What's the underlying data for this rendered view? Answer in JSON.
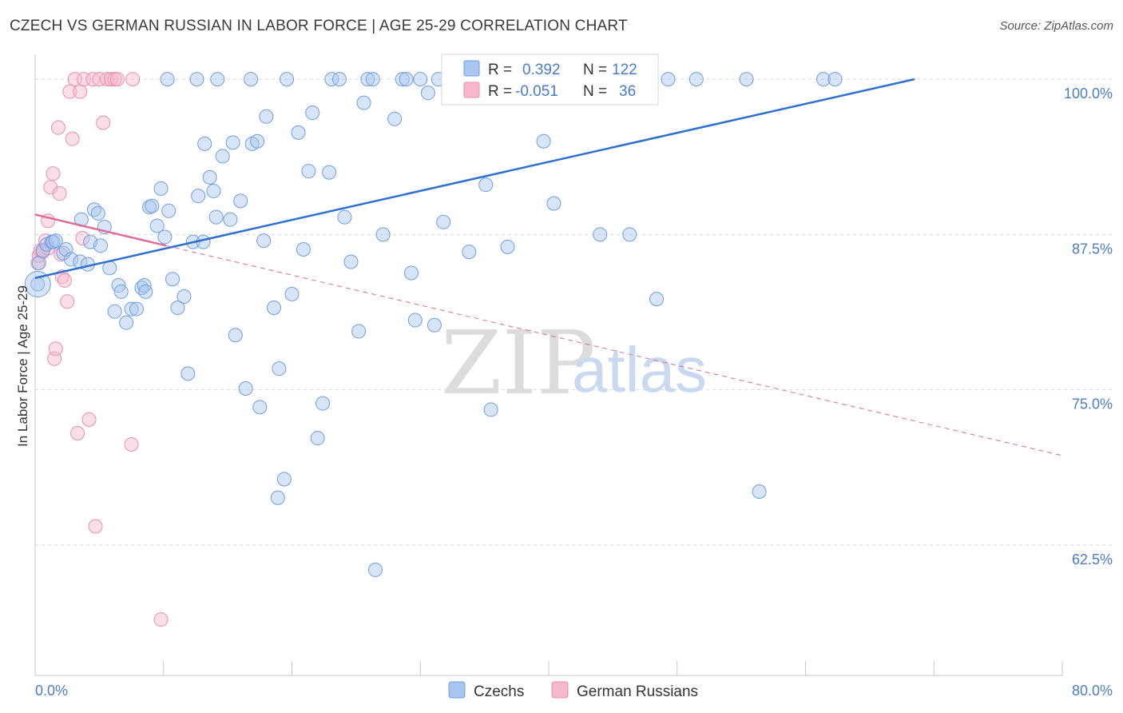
{
  "header": {
    "title": "CZECH VS GERMAN RUSSIAN IN LABOR FORCE | AGE 25-29 CORRELATION CHART",
    "source": "Source: ZipAtlas.com"
  },
  "watermark": {
    "zip": "ZIP",
    "atlas": "atlas"
  },
  "colors": {
    "czech_fill": "#a9c6f0",
    "czech_stroke": "#6e9fe0",
    "czech_line": "#2f6fd0",
    "german_fill": "#f6b8cc",
    "german_stroke": "#ea8eaf",
    "german_line": "#e06a95",
    "grid": "#d8d8d8",
    "tick_text": "#4a7cc7"
  },
  "stats": [
    {
      "r_label": "R =",
      "r_value": "0.392",
      "n_label": "N =",
      "n_value": "122"
    },
    {
      "r_label": "R =",
      "r_value": "-0.051",
      "n_label": "N =",
      "n_value": "36"
    }
  ],
  "chart_data": {
    "type": "scatter",
    "title": "CZECH VS GERMAN RUSSIAN IN LABOR FORCE | AGE 25-29 CORRELATION CHART",
    "xlabel": "",
    "ylabel": "In Labor Force | Age 25-29",
    "xlim": [
      0,
      80
    ],
    "ylim": [
      52,
      102
    ],
    "x_tick_labels": [
      "0.0%",
      "80.0%"
    ],
    "y_ticks": [
      62.5,
      75.0,
      87.5,
      100.0
    ],
    "y_tick_labels": [
      "62.5%",
      "75.0%",
      "87.5%",
      "100.0%"
    ],
    "grid": true,
    "legend_position": "bottom-center",
    "series": [
      {
        "name": "Czechs",
        "points": [
          [
            0.2,
            83.5
          ],
          [
            0.3,
            85.2
          ],
          [
            0.6,
            86.2
          ],
          [
            0.9,
            86.7
          ],
          [
            1.3,
            86.9
          ],
          [
            1.4,
            86.9
          ],
          [
            1.6,
            87.0
          ],
          [
            2.2,
            86.0
          ],
          [
            2.4,
            86.3
          ],
          [
            2.8,
            85.5
          ],
          [
            3.5,
            85.3
          ],
          [
            3.6,
            88.7
          ],
          [
            4.1,
            85.1
          ],
          [
            4.3,
            86.9
          ],
          [
            4.6,
            89.5
          ],
          [
            4.9,
            89.2
          ],
          [
            5.1,
            86.6
          ],
          [
            5.4,
            88.1
          ],
          [
            5.8,
            84.8
          ],
          [
            6.2,
            81.3
          ],
          [
            6.5,
            83.4
          ],
          [
            6.7,
            82.9
          ],
          [
            7.1,
            80.4
          ],
          [
            7.5,
            81.5
          ],
          [
            7.9,
            81.5
          ],
          [
            8.3,
            83.2
          ],
          [
            8.5,
            83.4
          ],
          [
            8.6,
            82.9
          ],
          [
            8.9,
            89.7
          ],
          [
            9.1,
            89.8
          ],
          [
            9.5,
            88.2
          ],
          [
            9.8,
            91.2
          ],
          [
            10.1,
            87.3
          ],
          [
            10.4,
            89.4
          ],
          [
            10.7,
            83.9
          ],
          [
            11.1,
            81.6
          ],
          [
            11.6,
            82.5
          ],
          [
            11.9,
            76.3
          ],
          [
            12.3,
            86.9
          ],
          [
            12.7,
            90.6
          ],
          [
            13.1,
            86.9
          ],
          [
            13.2,
            94.8
          ],
          [
            13.6,
            92.1
          ],
          [
            13.9,
            91.0
          ],
          [
            14.1,
            88.9
          ],
          [
            14.6,
            93.8
          ],
          [
            15.2,
            88.7
          ],
          [
            15.4,
            94.9
          ],
          [
            15.6,
            79.4
          ],
          [
            16.0,
            90.2
          ],
          [
            16.4,
            75.1
          ],
          [
            16.9,
            94.8
          ],
          [
            17.3,
            95.0
          ],
          [
            17.5,
            73.6
          ],
          [
            17.8,
            87.0
          ],
          [
            18.0,
            97.0
          ],
          [
            18.6,
            81.6
          ],
          [
            19.0,
            76.7
          ],
          [
            19.4,
            67.8
          ],
          [
            18.9,
            66.3
          ],
          [
            19.6,
            100.0
          ],
          [
            20.0,
            82.7
          ],
          [
            20.5,
            95.7
          ],
          [
            20.9,
            86.3
          ],
          [
            21.3,
            92.6
          ],
          [
            21.6,
            97.3
          ],
          [
            22.0,
            71.1
          ],
          [
            22.4,
            73.9
          ],
          [
            22.9,
            92.5
          ],
          [
            23.1,
            100.0
          ],
          [
            23.7,
            100.0
          ],
          [
            24.1,
            88.9
          ],
          [
            24.6,
            85.3
          ],
          [
            25.2,
            79.7
          ],
          [
            25.6,
            98.1
          ],
          [
            25.9,
            100.0
          ],
          [
            26.3,
            100.0
          ],
          [
            26.5,
            60.5
          ],
          [
            27.1,
            87.5
          ],
          [
            28.0,
            96.8
          ],
          [
            28.6,
            100.0
          ],
          [
            28.9,
            100.0
          ],
          [
            29.3,
            84.4
          ],
          [
            29.6,
            80.6
          ],
          [
            30.0,
            100.0
          ],
          [
            30.6,
            98.9
          ],
          [
            31.1,
            80.2
          ],
          [
            31.4,
            100.0
          ],
          [
            31.8,
            88.5
          ],
          [
            32.4,
            100.0
          ],
          [
            33.1,
            100.0
          ],
          [
            33.8,
            86.1
          ],
          [
            34.5,
            100.0
          ],
          [
            35.1,
            91.5
          ],
          [
            35.5,
            73.4
          ],
          [
            36.2,
            100.0
          ],
          [
            36.8,
            86.5
          ],
          [
            37.6,
            100.0
          ],
          [
            38.3,
            100.0
          ],
          [
            39.0,
            100.0
          ],
          [
            39.6,
            95.0
          ],
          [
            40.4,
            90.0
          ],
          [
            41.3,
            100.0
          ],
          [
            42.3,
            100.0
          ],
          [
            43.1,
            100.0
          ],
          [
            44.0,
            87.5
          ],
          [
            44.8,
            100.0
          ],
          [
            45.6,
            100.0
          ],
          [
            46.3,
            87.5
          ],
          [
            47.0,
            100.0
          ],
          [
            47.8,
            100.0
          ],
          [
            48.4,
            82.3
          ],
          [
            49.3,
            100.0
          ],
          [
            51.5,
            100.0
          ],
          [
            55.4,
            100.0
          ],
          [
            56.4,
            66.8
          ],
          [
            61.4,
            100.0
          ],
          [
            62.3,
            100.0
          ],
          [
            10.3,
            100.0
          ],
          [
            12.6,
            100.0
          ],
          [
            14.2,
            100.0
          ],
          [
            16.8,
            100.0
          ]
        ]
      },
      {
        "name": "German Russians",
        "points": [
          [
            0.2,
            85.2
          ],
          [
            0.3,
            85.8
          ],
          [
            0.4,
            86.2
          ],
          [
            0.6,
            86.1
          ],
          [
            0.8,
            87.0
          ],
          [
            1.0,
            88.6
          ],
          [
            1.2,
            91.3
          ],
          [
            1.4,
            92.4
          ],
          [
            1.5,
            77.5
          ],
          [
            1.6,
            78.3
          ],
          [
            1.8,
            96.1
          ],
          [
            1.9,
            90.8
          ],
          [
            2.1,
            84.1
          ],
          [
            2.3,
            83.8
          ],
          [
            2.5,
            82.1
          ],
          [
            2.7,
            99.0
          ],
          [
            2.9,
            95.2
          ],
          [
            3.1,
            100.0
          ],
          [
            3.3,
            71.5
          ],
          [
            3.5,
            99.0
          ],
          [
            3.7,
            87.2
          ],
          [
            3.8,
            100.0
          ],
          [
            4.2,
            72.6
          ],
          [
            4.5,
            100.0
          ],
          [
            4.7,
            64.0
          ],
          [
            5.0,
            100.0
          ],
          [
            5.3,
            96.5
          ],
          [
            5.6,
            100.0
          ],
          [
            5.9,
            100.0
          ],
          [
            6.2,
            100.0
          ],
          [
            6.4,
            100.0
          ],
          [
            7.6,
            100.0
          ],
          [
            7.5,
            70.6
          ],
          [
            9.8,
            56.5
          ],
          [
            1.0,
            86.4
          ],
          [
            2.0,
            85.9
          ]
        ]
      }
    ],
    "trend_lines": [
      {
        "series": "Czechs",
        "x": [
          0,
          68.5
        ],
        "y": [
          84.0,
          100.0
        ],
        "style": "solid"
      },
      {
        "series": "German Russians",
        "x": [
          0,
          10.2
        ],
        "y": [
          89.1,
          86.6
        ],
        "style": "solid"
      },
      {
        "series": "German Russians",
        "x": [
          10.2,
          80
        ],
        "y": [
          86.6,
          69.7
        ],
        "style": "dashed"
      }
    ]
  }
}
